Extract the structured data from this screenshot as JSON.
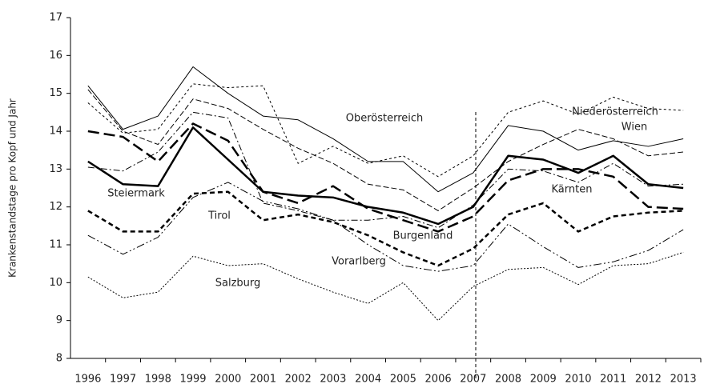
{
  "chart_data": {
    "type": "line",
    "y_label": "Krankenstandstage pro Kopf und Jahr",
    "categories": [
      "1996",
      "1997",
      "1998",
      "1999",
      "2000",
      "2001",
      "2002",
      "2003",
      "2004",
      "2005",
      "2006",
      "2007",
      "2008",
      "2009",
      "2010",
      "2011",
      "2012",
      "2013"
    ],
    "ylim": [
      8,
      17
    ],
    "yticks": [
      8,
      9,
      10,
      11,
      12,
      13,
      14,
      15,
      16,
      17
    ],
    "grid": false,
    "series": [
      {
        "name": "Wien",
        "color": "#000000",
        "width": 1,
        "dash": "none",
        "values": [
          15.2,
          14.05,
          14.4,
          15.7,
          15.0,
          14.4,
          14.3,
          13.8,
          13.2,
          13.2,
          12.4,
          12.9,
          14.15,
          14.0,
          13.5,
          13.75,
          13.6,
          13.8
        ]
      },
      {
        "name": "Niederösterreich",
        "color": "#000000",
        "width": 1,
        "dash": "3 3",
        "values": [
          14.75,
          13.95,
          14.05,
          15.25,
          15.15,
          15.2,
          13.15,
          13.6,
          13.15,
          13.35,
          12.8,
          13.35,
          14.5,
          14.8,
          14.45,
          14.9,
          14.6,
          14.55
        ]
      },
      {
        "name": "Oberösterreich",
        "color": "#000000",
        "width": 1,
        "dash": "7 3",
        "values": [
          15.1,
          14.0,
          13.65,
          14.85,
          14.6,
          14.05,
          13.55,
          13.15,
          12.6,
          12.45,
          11.9,
          12.5,
          13.2,
          13.65,
          14.05,
          13.8,
          13.35,
          13.45
        ]
      },
      {
        "name": "Steiermark",
        "color": "#000000",
        "width": 2.5,
        "dash": "none",
        "values": [
          13.2,
          12.6,
          12.55,
          14.1,
          13.25,
          12.4,
          12.3,
          12.25,
          12.0,
          11.85,
          11.55,
          12.0,
          13.35,
          13.25,
          12.9,
          13.35,
          12.6,
          12.5
        ]
      },
      {
        "name": "Kärnten",
        "color": "#000000",
        "width": 2.5,
        "dash": "14 6",
        "values": [
          14.0,
          13.85,
          13.2,
          14.2,
          13.75,
          12.4,
          12.1,
          12.55,
          11.95,
          11.65,
          11.35,
          11.75,
          12.7,
          13.0,
          13.0,
          12.8,
          12.0,
          11.95
        ]
      },
      {
        "name": "Tirol",
        "color": "#000000",
        "width": 1,
        "dash": "8 3 2 3",
        "values": [
          13.05,
          12.95,
          13.45,
          14.5,
          14.35,
          12.1,
          11.9,
          11.65,
          11.65,
          11.75,
          11.45,
          12.05,
          13.0,
          12.95,
          12.65,
          13.15,
          12.55,
          12.6
        ]
      },
      {
        "name": "Burgenland",
        "color": "#000000",
        "width": 2.5,
        "dash": "6 4",
        "values": [
          11.9,
          11.35,
          11.35,
          12.35,
          12.4,
          11.65,
          11.8,
          11.6,
          11.25,
          10.8,
          10.45,
          10.9,
          11.8,
          12.1,
          11.35,
          11.75,
          11.85,
          11.9
        ]
      },
      {
        "name": "Vorarlberg",
        "color": "#000000",
        "width": 1,
        "dash": "10 3 2 3 2 3",
        "values": [
          11.25,
          10.75,
          11.2,
          12.25,
          12.65,
          12.15,
          11.95,
          11.65,
          11.0,
          10.45,
          10.3,
          10.45,
          11.55,
          10.95,
          10.4,
          10.55,
          10.85,
          11.4
        ]
      },
      {
        "name": "Salzburg",
        "color": "#000000",
        "width": 1,
        "dash": "2 2",
        "values": [
          10.15,
          9.6,
          9.75,
          10.7,
          10.45,
          10.5,
          10.1,
          9.75,
          9.45,
          10.0,
          9.0,
          9.9,
          10.35,
          10.4,
          9.95,
          10.45,
          10.5,
          10.8
        ]
      }
    ]
  }
}
